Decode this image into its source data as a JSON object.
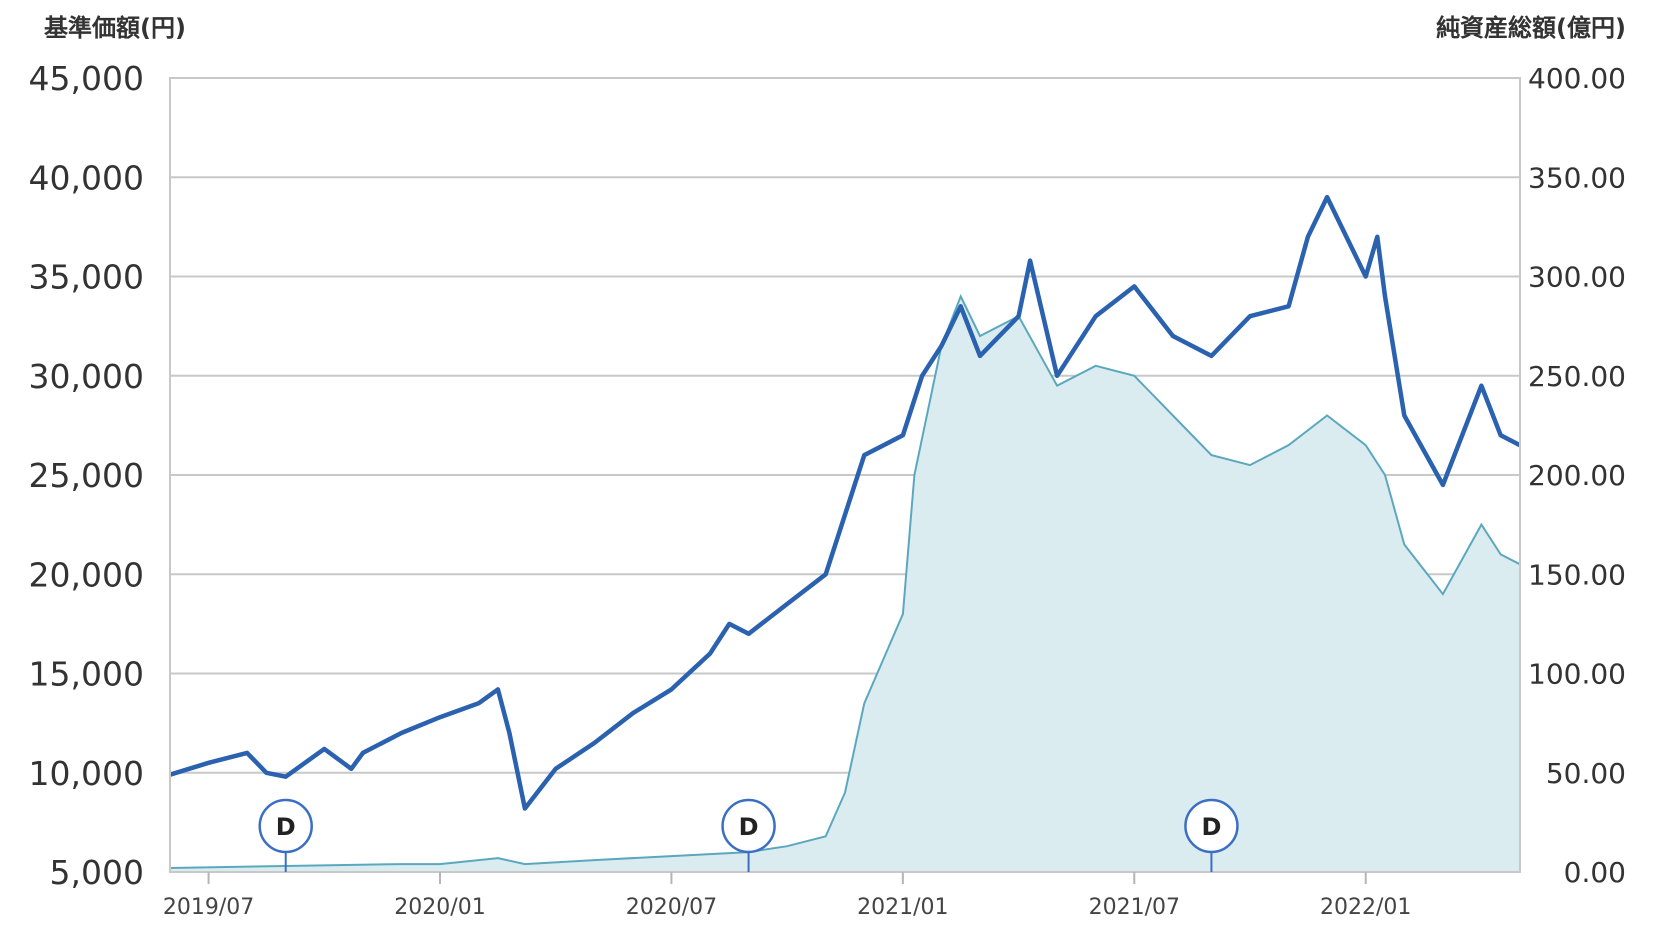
{
  "chart_data": {
    "type": "line",
    "left_axis_title": "基準価額(円)",
    "right_axis_title": "純資産総額(億円)",
    "y_ticks": [
      "45,000",
      "40,000",
      "35,000",
      "30,000",
      "25,000",
      "20,000",
      "15,000",
      "10,000",
      "5,000"
    ],
    "y2_ticks": [
      "400.00",
      "350.00",
      "300.00",
      "250.00",
      "200.00",
      "150.00",
      "100.00",
      "50.00",
      "0.00"
    ],
    "x_ticks": [
      "2019/07",
      "2020/01",
      "2020/07",
      "2021/01",
      "2021/07",
      "2022/01"
    ],
    "ylim": [
      5000,
      45000
    ],
    "y2lim": [
      0,
      400
    ],
    "xlim": [
      "2019/06",
      "2022/05"
    ],
    "grid": true,
    "markers": [
      {
        "label": "D",
        "date": "2019/09"
      },
      {
        "label": "D",
        "date": "2020/09"
      },
      {
        "label": "D",
        "date": "2021/09"
      }
    ],
    "series": [
      {
        "axis": "left",
        "style": "line",
        "color": "#2a62b0",
        "points": [
          [
            "2019/06",
            9900
          ],
          [
            "2019/07",
            10500
          ],
          [
            "2019/08",
            11000
          ],
          [
            "2019/08.5",
            10000
          ],
          [
            "2019/09",
            9800
          ],
          [
            "2019/10",
            11200
          ],
          [
            "2019/10.7",
            10200
          ],
          [
            "2019/11",
            11000
          ],
          [
            "2019/12",
            12000
          ],
          [
            "2020/01",
            12800
          ],
          [
            "2020/02",
            13500
          ],
          [
            "2020/02.5",
            14200
          ],
          [
            "2020/02.8",
            12000
          ],
          [
            "2020/03.2",
            8200
          ],
          [
            "2020/04",
            10200
          ],
          [
            "2020/05",
            11500
          ],
          [
            "2020/06",
            13000
          ],
          [
            "2020/07",
            14200
          ],
          [
            "2020/08",
            16000
          ],
          [
            "2020/08.5",
            17500
          ],
          [
            "2020/09",
            17000
          ],
          [
            "2020/10",
            18500
          ],
          [
            "2020/11",
            20000
          ],
          [
            "2020/11.5",
            23000
          ],
          [
            "2020/12",
            26000
          ],
          [
            "2021/01",
            27000
          ],
          [
            "2021/01.5",
            30000
          ],
          [
            "2021/02",
            31500
          ],
          [
            "2021/02.5",
            33500
          ],
          [
            "2021/03",
            31000
          ],
          [
            "2021/04",
            33000
          ],
          [
            "2021/04.3",
            35800
          ],
          [
            "2021/05",
            30000
          ],
          [
            "2021/06",
            33000
          ],
          [
            "2021/07",
            34500
          ],
          [
            "2021/08",
            32000
          ],
          [
            "2021/09",
            31000
          ],
          [
            "2021/10",
            33000
          ],
          [
            "2021/11",
            33500
          ],
          [
            "2021/11.5",
            37000
          ],
          [
            "2021/12",
            39000
          ],
          [
            "2022/01",
            35000
          ],
          [
            "2022/01.3",
            37000
          ],
          [
            "2022/01.5",
            34000
          ],
          [
            "2022/02",
            28000
          ],
          [
            "2022/03",
            24500
          ],
          [
            "2022/04",
            29500
          ],
          [
            "2022/04.5",
            27000
          ],
          [
            "2022/05",
            26500
          ]
        ]
      },
      {
        "axis": "right",
        "style": "area",
        "color": "#5ba8be",
        "fill": "#dbecf1",
        "points": [
          [
            "2019/06",
            2
          ],
          [
            "2019/09",
            3
          ],
          [
            "2019/12",
            4
          ],
          [
            "2020/01",
            4
          ],
          [
            "2020/02.5",
            7
          ],
          [
            "2020/03.2",
            4
          ],
          [
            "2020/05",
            6
          ],
          [
            "2020/07",
            8
          ],
          [
            "2020/09",
            10
          ],
          [
            "2020/10",
            13
          ],
          [
            "2020/11",
            18
          ],
          [
            "2020/11.5",
            40
          ],
          [
            "2020/12",
            85
          ],
          [
            "2021/01",
            130
          ],
          [
            "2021/01.3",
            200
          ],
          [
            "2021/02",
            265
          ],
          [
            "2021/02.5",
            290
          ],
          [
            "2021/03",
            270
          ],
          [
            "2021/04",
            280
          ],
          [
            "2021/05",
            245
          ],
          [
            "2021/06",
            255
          ],
          [
            "2021/07",
            250
          ],
          [
            "2021/08",
            230
          ],
          [
            "2021/09",
            210
          ],
          [
            "2021/10",
            205
          ],
          [
            "2021/11",
            215
          ],
          [
            "2021/12",
            230
          ],
          [
            "2022/01",
            215
          ],
          [
            "2022/01.5",
            200
          ],
          [
            "2022/02",
            165
          ],
          [
            "2022/03",
            140
          ],
          [
            "2022/04",
            175
          ],
          [
            "2022/04.5",
            160
          ],
          [
            "2022/05",
            155
          ]
        ]
      }
    ]
  }
}
